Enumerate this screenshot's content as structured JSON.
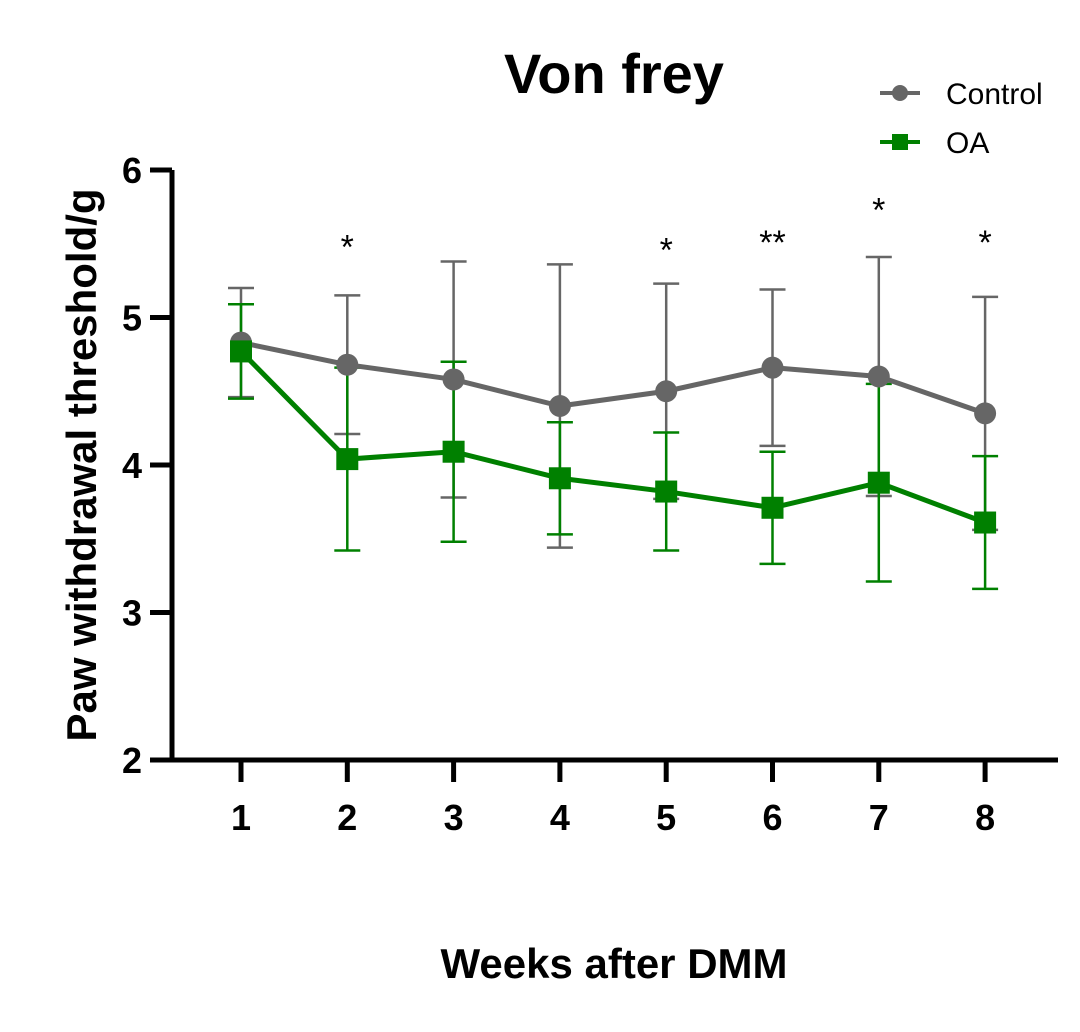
{
  "chart_data": {
    "type": "line",
    "title": "Von frey",
    "xlabel": "Weeks after DMM",
    "ylabel": "Paw withdrawal threshold/g",
    "x": [
      1,
      2,
      3,
      4,
      5,
      6,
      7,
      8
    ],
    "ylim": [
      2,
      6
    ],
    "yticks": [
      2,
      3,
      4,
      5,
      6
    ],
    "grid": false,
    "legend_position": "top-right",
    "series": [
      {
        "name": "Control",
        "color": "#666666",
        "marker": "circle",
        "values": [
          4.83,
          4.68,
          4.58,
          4.4,
          4.5,
          4.66,
          4.6,
          4.35
        ],
        "error": [
          0.37,
          0.47,
          0.8,
          0.96,
          0.73,
          0.53,
          0.81,
          0.79
        ]
      },
      {
        "name": "OA",
        "color": "#008000",
        "marker": "square",
        "values": [
          4.77,
          4.04,
          4.09,
          3.91,
          3.82,
          3.71,
          3.88,
          3.61
        ],
        "error": [
          0.32,
          0.62,
          0.61,
          0.38,
          0.4,
          0.38,
          0.67,
          0.45
        ]
      }
    ],
    "significance": [
      {
        "x": 2,
        "label": "*",
        "y": 5.55
      },
      {
        "x": 5,
        "label": "*",
        "y": 5.53
      },
      {
        "x": 6,
        "label": "**",
        "y": 5.58
      },
      {
        "x": 7,
        "label": "*",
        "y": 5.8
      },
      {
        "x": 8,
        "label": "*",
        "y": 5.58
      }
    ]
  }
}
